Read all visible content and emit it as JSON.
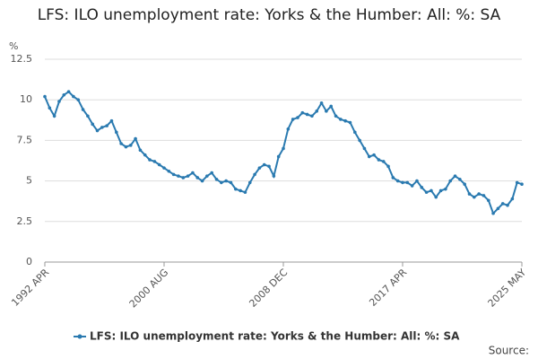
{
  "chart_data": {
    "type": "line",
    "title": "LFS: ILO unemployment rate: Yorks & the Humber: All: %: SA",
    "y_label": "%",
    "source": "Source:",
    "categories": [
      "1992 APR",
      null,
      null,
      null,
      null,
      null,
      null,
      null,
      null,
      null,
      null,
      null,
      null,
      null,
      null,
      null,
      null,
      null,
      null,
      null,
      null,
      null,
      null,
      null,
      null,
      "2000 AUG",
      null,
      null,
      null,
      null,
      null,
      null,
      null,
      null,
      null,
      null,
      null,
      null,
      null,
      null,
      null,
      null,
      null,
      null,
      null,
      null,
      null,
      null,
      null,
      null,
      "2008 DEC",
      null,
      null,
      null,
      null,
      null,
      null,
      null,
      null,
      null,
      null,
      null,
      null,
      null,
      null,
      null,
      null,
      null,
      null,
      null,
      null,
      null,
      null,
      null,
      null,
      "2017 APR",
      null,
      null,
      null,
      null,
      null,
      null,
      null,
      null,
      null,
      null,
      null,
      null,
      null,
      null,
      null,
      null,
      null,
      null,
      null,
      null,
      null,
      null,
      null,
      null,
      "2025 MAY"
    ],
    "series": [
      {
        "name": "LFS: ILO unemployment rate: Yorks & the Humber: All: %: SA",
        "color": "#2a7ab0",
        "values": [
          10.2,
          9.5,
          9.0,
          9.9,
          10.3,
          10.5,
          10.2,
          10.0,
          9.4,
          9.0,
          8.5,
          8.1,
          8.3,
          8.4,
          8.7,
          8.0,
          7.3,
          7.1,
          7.2,
          7.6,
          6.9,
          6.6,
          6.3,
          6.2,
          6.0,
          5.8,
          5.6,
          5.4,
          5.3,
          5.2,
          5.3,
          5.5,
          5.2,
          5.0,
          5.3,
          5.5,
          5.1,
          4.9,
          5.0,
          4.9,
          4.5,
          4.4,
          4.3,
          4.9,
          5.4,
          5.8,
          6.0,
          5.9,
          5.3,
          6.5,
          7.0,
          8.2,
          8.8,
          8.9,
          9.2,
          9.1,
          9.0,
          9.3,
          9.8,
          9.3,
          9.6,
          9.0,
          8.8,
          8.7,
          8.6,
          8.0,
          7.5,
          7.0,
          6.5,
          6.6,
          6.3,
          6.2,
          5.9,
          5.2,
          5.0,
          4.9,
          4.9,
          4.7,
          5.0,
          4.6,
          4.3,
          4.4,
          4.0,
          4.4,
          4.5,
          5.0,
          5.3,
          5.1,
          4.8,
          4.2,
          4.0,
          4.2,
          4.1,
          3.8,
          3.0,
          3.3,
          3.6,
          3.5,
          3.9,
          4.9,
          4.8
        ]
      }
    ],
    "ylim": [
      0,
      12.5
    ],
    "yticks": [
      0,
      2.5,
      5,
      7.5,
      10,
      12.5
    ],
    "grid": true
  }
}
